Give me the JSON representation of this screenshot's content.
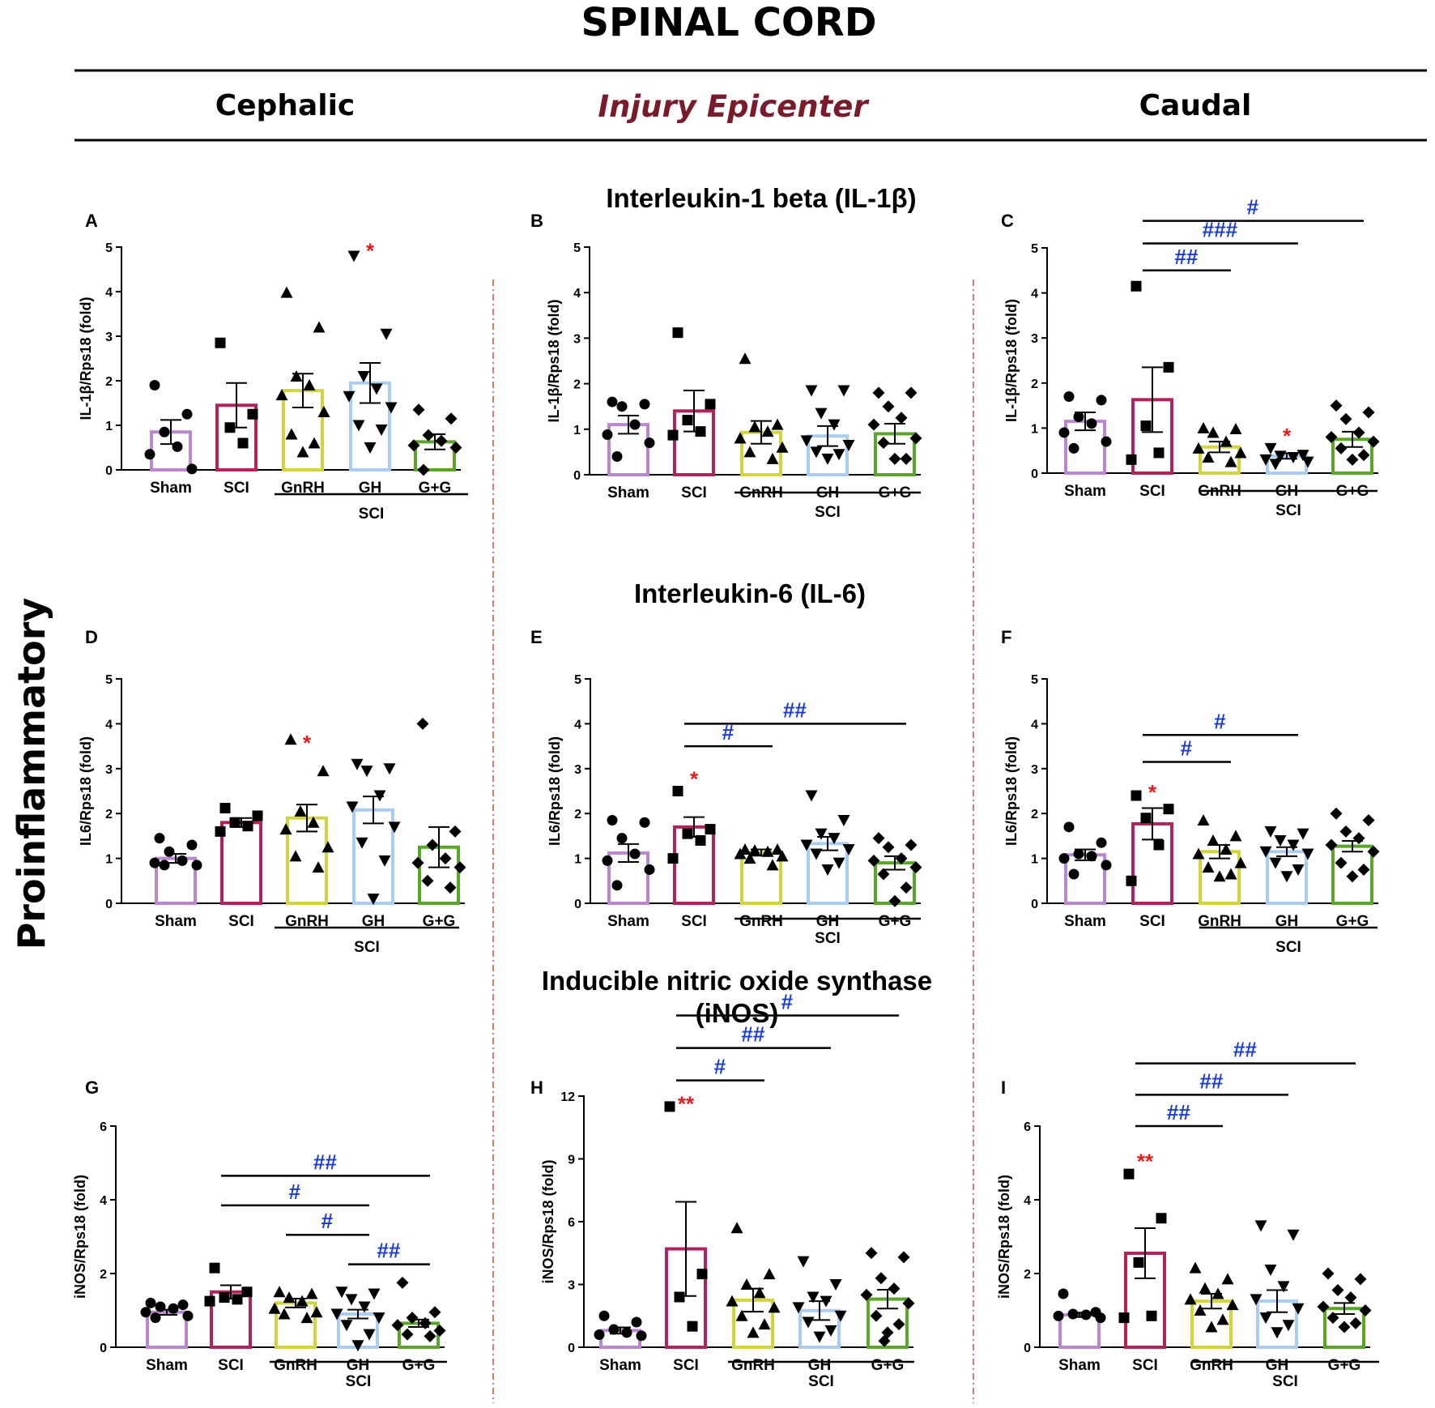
{
  "header": {
    "title": "SPINAL CORD",
    "columns": [
      "Cephalic",
      "Injury Epicenter",
      "Caudal"
    ]
  },
  "side_label": "Proinflammatory",
  "section_titles": [
    "Interleukin-1 beta (IL-1β)",
    "Interleukin-6 (IL-6)",
    "Inducible nitric oxide synthase",
    "(iNOS)"
  ],
  "colors": {
    "Sham": "#b987cf",
    "SCI": "#b3225c",
    "GnRH": "#d2d43a",
    "GH": "#a9cdf0",
    "G+G": "#5aa629",
    "significance_star": "#e21b1b",
    "significance_hash": "#1a3bd6",
    "column_header_epicenter": "#7a1b2c"
  },
  "chart_data": [
    {
      "panel": "A",
      "type": "bar",
      "ylabel": "IL-1β/Rps18 (fold)",
      "ylim": [
        0,
        5
      ],
      "yticks": [
        0,
        1,
        2,
        3,
        4,
        5
      ],
      "categories": [
        "Sham",
        "SCI",
        "GnRH",
        "GH",
        "G+G"
      ],
      "group_label": "SCI",
      "values": [
        0.85,
        1.45,
        1.78,
        1.95,
        0.63
      ],
      "sem": [
        0.27,
        0.5,
        0.38,
        0.45,
        0.17
      ],
      "points": [
        [
          1.9,
          1.25,
          0.85,
          0.52,
          0.35,
          0.02
        ],
        [
          2.85,
          1.25,
          0.95,
          0.6
        ],
        [
          3.98,
          3.2,
          2.1,
          1.9,
          1.68,
          1.3,
          0.8,
          0.6,
          0.4
        ],
        [
          4.8,
          3.05,
          2.1,
          1.82,
          1.65,
          1.4,
          1.0,
          0.9,
          0.5
        ],
        [
          1.35,
          1.15,
          0.78,
          0.65,
          0.55,
          0.5,
          0.0
        ]
      ],
      "markers": [
        {
          "category": "GH",
          "text": "*",
          "value": 5.05
        }
      ],
      "comparisons": []
    },
    {
      "panel": "B",
      "type": "bar",
      "ylabel": "IL-1β/Rps18 (fold)",
      "ylim": [
        0,
        5
      ],
      "yticks": [
        0,
        1,
        2,
        3,
        4,
        5
      ],
      "categories": [
        "Sham",
        "SCI",
        "GnRH",
        "GH",
        "G+G"
      ],
      "group_label": "SCI",
      "values": [
        1.1,
        1.4,
        0.93,
        0.85,
        0.9
      ],
      "sem": [
        0.2,
        0.45,
        0.25,
        0.22,
        0.22
      ],
      "points": [
        [
          1.6,
          1.55,
          1.5,
          1.1,
          0.88,
          0.7,
          0.4
        ],
        [
          3.12,
          1.55,
          1.2,
          0.95,
          0.87
        ],
        [
          2.55,
          1.1,
          1.05,
          0.95,
          0.8,
          0.6,
          0.5,
          0.35
        ],
        [
          1.85,
          1.85,
          1.35,
          1.1,
          0.75,
          0.65,
          0.5,
          0.45,
          0.35
        ],
        [
          1.8,
          1.8,
          1.5,
          1.25,
          1.1,
          0.8,
          0.7,
          0.35,
          0.35
        ]
      ],
      "markers": [],
      "comparisons": []
    },
    {
      "panel": "C",
      "type": "bar",
      "ylabel": "IL-1β/Rps18 (fold)",
      "ylim": [
        0,
        5
      ],
      "yticks": [
        0,
        1,
        2,
        3,
        4,
        5
      ],
      "categories": [
        "Sham",
        "SCI",
        "GnRH",
        "GH",
        "G+G"
      ],
      "group_label": "SCI",
      "values": [
        1.15,
        1.63,
        0.58,
        0.38,
        0.75
      ],
      "sem": [
        0.2,
        0.72,
        0.12,
        0.06,
        0.17
      ],
      "points": [
        [
          1.7,
          1.62,
          1.25,
          1.1,
          0.9,
          0.7,
          0.55
        ],
        [
          4.15,
          2.35,
          1.05,
          0.45,
          0.3
        ],
        [
          1.0,
          0.98,
          0.9,
          0.7,
          0.55,
          0.45,
          0.35,
          0.25
        ],
        [
          0.55,
          0.4,
          0.38,
          0.35,
          0.3,
          0.25,
          0.2
        ],
        [
          1.5,
          1.35,
          1.2,
          0.9,
          0.8,
          0.7,
          0.55,
          0.4,
          0.3
        ]
      ],
      "markers": [
        {
          "category": "GH",
          "text": "*",
          "value": 0.95
        }
      ],
      "comparisons": [
        {
          "from": "SCI",
          "to": "GnRH",
          "text": "##",
          "level": 4.5
        },
        {
          "from": "SCI",
          "to": "GH",
          "text": "###",
          "level": 5.1
        },
        {
          "from": "SCI",
          "to": "G+G",
          "text": "#",
          "level": 5.6
        }
      ]
    },
    {
      "panel": "D",
      "type": "bar",
      "ylabel": "IL6/Rps18 (fold)",
      "ylim": [
        0,
        5
      ],
      "yticks": [
        0,
        1,
        2,
        3,
        4,
        5
      ],
      "categories": [
        "Sham",
        "SCI",
        "GnRH",
        "GH",
        "G+G"
      ],
      "group_label": "SCI",
      "values": [
        1.0,
        1.8,
        1.9,
        2.08,
        1.25
      ],
      "sem": [
        0.1,
        0.1,
        0.3,
        0.3,
        0.45
      ],
      "points": [
        [
          1.45,
          1.3,
          1.15,
          0.95,
          0.9,
          0.85,
          0.85
        ],
        [
          2.12,
          1.95,
          1.8,
          1.72,
          1.6
        ],
        [
          3.65,
          2.95,
          2.05,
          1.8,
          1.65,
          1.25,
          1.05,
          0.8
        ],
        [
          3.1,
          3.0,
          2.95,
          2.4,
          2.15,
          1.7,
          1.35,
          0.95,
          0.1
        ],
        [
          4.0,
          1.6,
          1.3,
          1.0,
          0.9,
          0.8,
          0.5,
          0.35
        ]
      ],
      "markers": [
        {
          "category": "GnRH",
          "text": "*",
          "value": 3.7
        }
      ],
      "comparisons": []
    },
    {
      "panel": "E",
      "type": "bar",
      "ylabel": "IL6/Rps18 (fold)",
      "ylim": [
        0,
        5
      ],
      "yticks": [
        0,
        1,
        2,
        3,
        4,
        5
      ],
      "categories": [
        "Sham",
        "SCI",
        "GnRH",
        "GH",
        "G+G"
      ],
      "group_label": "SCI",
      "values": [
        1.12,
        1.7,
        1.13,
        1.33,
        0.9
      ],
      "sem": [
        0.2,
        0.22,
        0.07,
        0.15,
        0.15
      ],
      "points": [
        [
          1.85,
          1.8,
          1.45,
          1.1,
          0.95,
          0.75,
          0.4
        ],
        [
          2.5,
          1.65,
          1.55,
          1.4,
          1.0
        ],
        [
          1.2,
          1.2,
          1.18,
          1.15,
          1.1,
          1.05,
          1.0,
          0.85
        ],
        [
          2.4,
          1.85,
          1.55,
          1.45,
          1.3,
          1.2,
          1.1,
          0.9,
          0.75
        ],
        [
          1.45,
          1.3,
          1.25,
          1.0,
          0.95,
          0.8,
          0.65,
          0.35,
          0.05
        ]
      ],
      "markers": [
        {
          "category": "SCI",
          "text": "*",
          "value": 2.9
        }
      ],
      "comparisons": [
        {
          "from": "SCI",
          "to": "GnRH",
          "text": "#",
          "level": 3.5
        },
        {
          "from": "SCI",
          "to": "G+G",
          "text": "##",
          "level": 4.0
        }
      ]
    },
    {
      "panel": "F",
      "type": "bar",
      "ylabel": "IL6/Rps18 (fold)",
      "ylim": [
        0,
        5
      ],
      "yticks": [
        0,
        1,
        2,
        3,
        4,
        5
      ],
      "categories": [
        "Sham",
        "SCI",
        "GnRH",
        "GH",
        "G+G"
      ],
      "group_label": "SCI",
      "values": [
        1.08,
        1.77,
        1.15,
        1.15,
        1.27
      ],
      "sem": [
        0.12,
        0.35,
        0.15,
        0.1,
        0.12
      ],
      "points": [
        [
          1.7,
          1.35,
          1.1,
          1.05,
          1.0,
          0.85,
          0.65
        ],
        [
          2.4,
          2.1,
          1.9,
          1.3,
          0.5
        ],
        [
          1.85,
          1.5,
          1.4,
          1.2,
          1.1,
          0.9,
          0.8,
          0.65,
          0.6
        ],
        [
          1.6,
          1.55,
          1.4,
          1.3,
          1.15,
          1.1,
          0.9,
          0.75,
          0.6
        ],
        [
          2.0,
          1.85,
          1.6,
          1.45,
          1.3,
          1.15,
          0.9,
          0.75,
          0.6
        ]
      ],
      "markers": [
        {
          "category": "SCI",
          "text": "*",
          "value": 2.6
        }
      ],
      "comparisons": [
        {
          "from": "SCI",
          "to": "GnRH",
          "text": "#",
          "level": 3.15
        },
        {
          "from": "SCI",
          "to": "GH",
          "text": "#",
          "level": 3.75
        }
      ]
    },
    {
      "panel": "G",
      "type": "bar",
      "ylabel": "iNOS/Rps18 (fold)",
      "ylim": [
        0,
        6
      ],
      "yticks": [
        0,
        2,
        4,
        6
      ],
      "categories": [
        "Sham",
        "SCI",
        "GnRH",
        "GH",
        "G+G"
      ],
      "group_label": "SCI",
      "values": [
        0.95,
        1.5,
        1.2,
        0.9,
        0.65
      ],
      "sem": [
        0.07,
        0.18,
        0.12,
        0.12,
        0.1
      ],
      "points": [
        [
          1.2,
          1.15,
          1.1,
          1.05,
          0.95,
          0.85,
          0.8
        ],
        [
          2.15,
          1.5,
          1.35,
          1.3,
          1.25
        ],
        [
          1.5,
          1.45,
          1.35,
          1.25,
          1.05,
          0.95,
          0.9,
          0.8
        ],
        [
          1.5,
          1.45,
          1.3,
          1.1,
          0.9,
          0.8,
          0.6,
          0.35,
          0.05
        ],
        [
          1.75,
          0.95,
          0.8,
          0.65,
          0.6,
          0.45,
          0.35,
          0.3
        ]
      ],
      "markers": [],
      "comparisons": [
        {
          "from": "GH",
          "to": "G+G",
          "text": "##",
          "level": 2.25
        },
        {
          "from": "GnRH",
          "to": "GH",
          "text": "#",
          "level": 3.05
        },
        {
          "from": "SCI",
          "to": "GH",
          "text": "#",
          "level": 3.85
        },
        {
          "from": "SCI",
          "to": "G+G",
          "text": "##",
          "level": 4.65
        }
      ]
    },
    {
      "panel": "H",
      "type": "bar",
      "ylabel": "iNOS/Rps18 (fold)",
      "ylim": [
        0,
        12
      ],
      "yticks": [
        0,
        3,
        6,
        9,
        12
      ],
      "categories": [
        "Sham",
        "SCI",
        "GnRH",
        "GH",
        "G+G"
      ],
      "group_label": "SCI",
      "values": [
        0.8,
        4.7,
        2.25,
        1.75,
        2.3
      ],
      "sem": [
        0.15,
        2.25,
        0.55,
        0.45,
        0.45
      ],
      "points": [
        [
          1.5,
          1.2,
          0.85,
          0.7,
          0.6,
          0.55
        ],
        [
          11.5,
          3.5,
          2.4,
          1.0
        ],
        [
          5.7,
          3.5,
          3.0,
          2.6,
          2.2,
          1.9,
          1.5,
          1.1,
          0.7
        ],
        [
          4.1,
          3.0,
          2.4,
          2.2,
          1.9,
          1.5,
          1.2,
          0.8,
          0.5
        ],
        [
          4.5,
          4.3,
          3.3,
          2.8,
          2.5,
          2.1,
          1.5,
          1.1,
          0.7,
          0.3
        ]
      ],
      "markers": [
        {
          "category": "SCI",
          "text": "**",
          "value": 11.9
        }
      ],
      "comparisons": [
        {
          "from": "SCI",
          "to": "GnRH",
          "text": "#",
          "level": 12.75
        },
        {
          "from": "SCI",
          "to": "GH",
          "text": "##",
          "level": 14.3
        },
        {
          "from": "SCI",
          "to": "G+G",
          "text": "#",
          "level": 15.85
        }
      ]
    },
    {
      "panel": "I",
      "type": "bar",
      "ylabel": "iNOS/Rps18 (fold)",
      "ylim": [
        0,
        6
      ],
      "yticks": [
        0,
        2,
        4,
        6
      ],
      "categories": [
        "Sham",
        "SCI",
        "GnRH",
        "GH",
        "G+G"
      ],
      "group_label": "SCI",
      "values": [
        0.88,
        2.55,
        1.25,
        1.25,
        1.05
      ],
      "sem": [
        0.06,
        0.68,
        0.2,
        0.3,
        0.15
      ],
      "points": [
        [
          1.45,
          0.95,
          0.9,
          0.88,
          0.85,
          0.8
        ],
        [
          4.7,
          3.5,
          2.3,
          0.85,
          0.8
        ],
        [
          2.15,
          1.85,
          1.6,
          1.45,
          1.3,
          1.15,
          1.0,
          0.75,
          0.55
        ],
        [
          3.3,
          3.05,
          2.1,
          1.65,
          1.3,
          1.05,
          0.8,
          0.6,
          0.4
        ],
        [
          2.0,
          1.85,
          1.55,
          1.35,
          1.1,
          1.0,
          0.8,
          0.65,
          0.55
        ]
      ],
      "markers": [
        {
          "category": "SCI",
          "text": "**",
          "value": 5.2
        }
      ],
      "comparisons": [
        {
          "from": "SCI",
          "to": "GnRH",
          "text": "##",
          "level": 6.0
        },
        {
          "from": "SCI",
          "to": "GH",
          "text": "##",
          "level": 6.85
        },
        {
          "from": "SCI",
          "to": "G+G",
          "text": "##",
          "level": 7.7
        }
      ]
    }
  ]
}
